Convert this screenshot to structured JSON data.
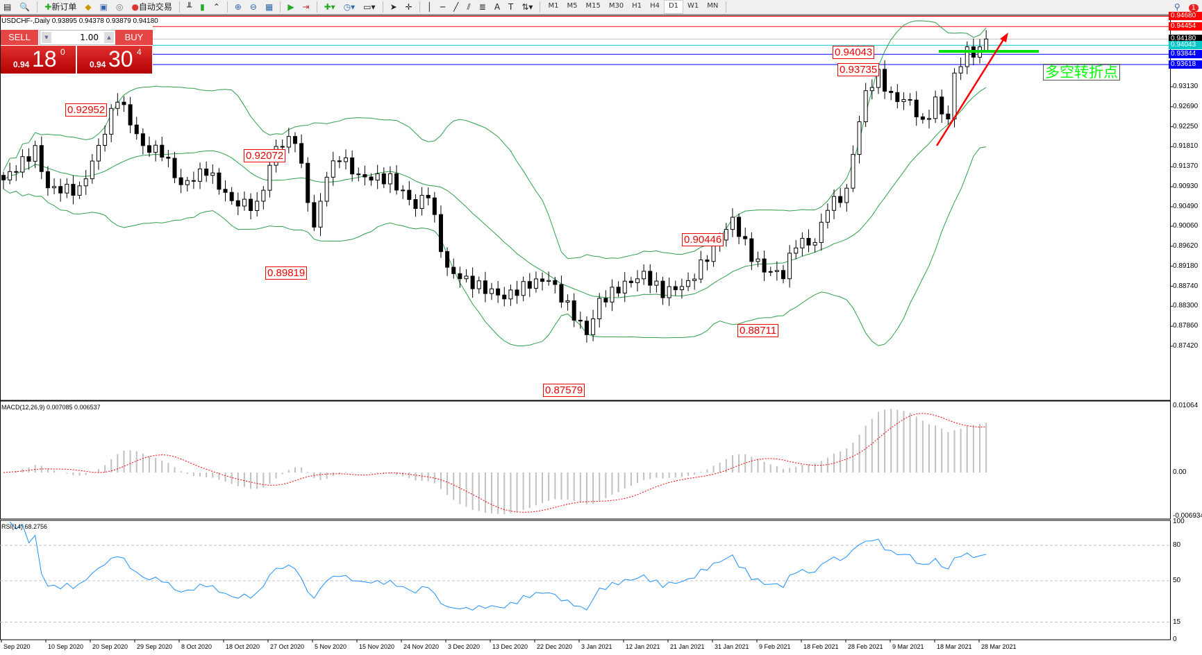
{
  "toolbar": {
    "new_order": "新订单",
    "auto_trade": "自动交易",
    "timeframes": [
      "M1",
      "M5",
      "M15",
      "M30",
      "H1",
      "H4",
      "D1",
      "W1",
      "MN"
    ],
    "selected_timeframe": "D1",
    "notification_count": "1"
  },
  "chart_title": "USDCHF-,Daily  0.93895 0.94378 0.93879 0.94180",
  "trade_panel": {
    "sell": "SELL",
    "buy": "BUY",
    "lot": "1.00",
    "sell_small": "0.94",
    "sell_big": "18",
    "sell_pip": "0",
    "buy_small": "0.94",
    "buy_big": "30",
    "buy_pip": "4"
  },
  "price_axis": [
    "0.93130",
    "0.92690",
    "0.92250",
    "0.91810",
    "0.91370",
    "0.90930",
    "0.90490",
    "0.90060",
    "0.89620",
    "0.89180",
    "0.88740",
    "0.88300",
    "0.87860",
    "0.87420"
  ],
  "price_tags": [
    {
      "value": "0.94680",
      "color": "#ff0000"
    },
    {
      "value": "0.94454",
      "color": "#ff0000"
    },
    {
      "value": "0.94180",
      "color": "#000000"
    },
    {
      "value": "0.94043",
      "color": "#00c8c8"
    },
    {
      "value": "0.93844",
      "color": "#0000ff"
    },
    {
      "value": "0.93618",
      "color": "#0000ff"
    }
  ],
  "annotations": [
    "0.92952",
    "0.92072",
    "0.89819",
    "0.87579",
    "0.90446",
    "0.88711",
    "0.94043",
    "0.93735"
  ],
  "text_box": "多空转折点",
  "macd": {
    "title": "MACD(12,26,9) 0.007085 0.006537",
    "axis": [
      "0.01064",
      "0.00",
      "-0.006934"
    ]
  },
  "rsi": {
    "title": "RSI(14) 68.2756",
    "axis": [
      "100",
      "80",
      "50",
      "15",
      "0"
    ],
    "levels": [
      80,
      50,
      15
    ]
  },
  "dates": [
    "Sep 2020",
    "10 Sep 2020",
    "20 Sep 2020",
    "29 Sep 2020",
    "8 Oct 2020",
    "18 Oct 2020",
    "27 Oct 2020",
    "5 Nov 2020",
    "15 Nov 2020",
    "24 Nov 2020",
    "3 Dec 2020",
    "13 Dec 2020",
    "22 Dec 2020",
    "3 Jan 2021",
    "12 Jan 2021",
    "21 Jan 2021",
    "31 Jan 2021",
    "9 Feb 2021",
    "18 Feb 2021",
    "28 Feb 2021",
    "9 Mar 2021",
    "18 Mar 2021",
    "28 Mar 2021"
  ],
  "chart_data": {
    "type": "candlestick",
    "symbol": "USDCHF-",
    "timeframe": "Daily",
    "ylim": [
      0.8742,
      0.9468
    ],
    "last": {
      "open": 0.93895,
      "high": 0.94378,
      "low": 0.93879,
      "close": 0.9418
    },
    "close_keypoints": [
      [
        0,
        0.9108
      ],
      [
        5,
        0.9174
      ],
      [
        7,
        0.909
      ],
      [
        12,
        0.9085
      ],
      [
        15,
        0.918
      ],
      [
        18,
        0.9291
      ],
      [
        22,
        0.918
      ],
      [
        25,
        0.917
      ],
      [
        28,
        0.9095
      ],
      [
        32,
        0.913
      ],
      [
        36,
        0.906
      ],
      [
        40,
        0.905
      ],
      [
        43,
        0.918
      ],
      [
        46,
        0.92
      ],
      [
        49,
        0.9
      ],
      [
        51,
        0.912
      ],
      [
        53,
        0.916
      ],
      [
        56,
        0.9115
      ],
      [
        61,
        0.911
      ],
      [
        65,
        0.905
      ],
      [
        67,
        0.908
      ],
      [
        69,
        0.896
      ],
      [
        70,
        0.891
      ],
      [
        74,
        0.888
      ],
      [
        79,
        0.885
      ],
      [
        83,
        0.888
      ],
      [
        86,
        0.889
      ],
      [
        89,
        0.883
      ],
      [
        92,
        0.877
      ],
      [
        94,
        0.884
      ],
      [
        97,
        0.887
      ],
      [
        101,
        0.89
      ],
      [
        104,
        0.886
      ],
      [
        108,
        0.888
      ],
      [
        112,
        0.896
      ],
      [
        115,
        0.902
      ],
      [
        118,
        0.894
      ],
      [
        120,
        0.891
      ],
      [
        123,
        0.89
      ],
      [
        125,
        0.897
      ],
      [
        128,
        0.897
      ],
      [
        130,
        0.905
      ],
      [
        133,
        0.908
      ],
      [
        134,
        0.917
      ],
      [
        136,
        0.93
      ],
      [
        138,
        0.934
      ],
      [
        140,
        0.929
      ],
      [
        143,
        0.928
      ],
      [
        145,
        0.923
      ],
      [
        147,
        0.928
      ],
      [
        149,
        0.924
      ],
      [
        150,
        0.934
      ],
      [
        152,
        0.939
      ],
      [
        154,
        0.939
      ],
      [
        155,
        0.9418
      ]
    ],
    "indicators": [
      "Bollinger Bands",
      "MACD(12,26,9)",
      "RSI(14)"
    ]
  }
}
